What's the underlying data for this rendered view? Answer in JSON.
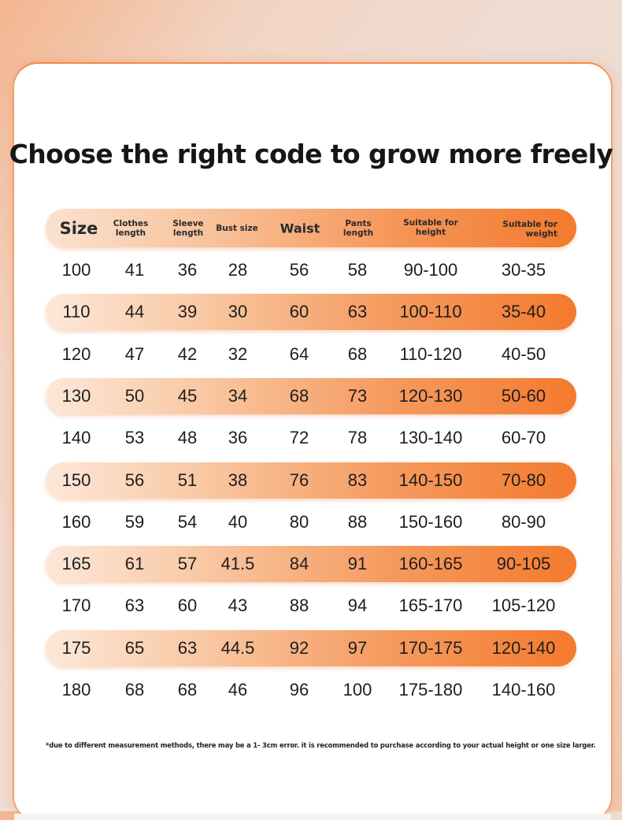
{
  "title": "Choose the right code to grow more freely",
  "headers": {
    "size": "Size",
    "clothes_length": "Clothes\nlength",
    "sleeve_length": "Sleeve\nlength",
    "bust_size": "Bust size",
    "waist": "Waist",
    "pants_length": "Pants\nlength",
    "suitable_height": "Suitable for\nheight",
    "suitable_weight": "Suitable for\nweight"
  },
  "rows": [
    [
      "100",
      "41",
      "36",
      "28",
      "56",
      "58",
      "90-100",
      "30-35"
    ],
    [
      "110",
      "44",
      "39",
      "30",
      "60",
      "63",
      "100-110",
      "35-40"
    ],
    [
      "120",
      "47",
      "42",
      "32",
      "64",
      "68",
      "110-120",
      "40-50"
    ],
    [
      "130",
      "50",
      "45",
      "34",
      "68",
      "73",
      "120-130",
      "50-60"
    ],
    [
      "140",
      "53",
      "48",
      "36",
      "72",
      "78",
      "130-140",
      "60-70"
    ],
    [
      "150",
      "56",
      "51",
      "38",
      "76",
      "83",
      "140-150",
      "70-80"
    ],
    [
      "160",
      "59",
      "54",
      "40",
      "80",
      "88",
      "150-160",
      "80-90"
    ],
    [
      "165",
      "61",
      "57",
      "41.5",
      "84",
      "91",
      "160-165",
      "90-105"
    ],
    [
      "170",
      "63",
      "60",
      "43",
      "88",
      "94",
      "165-170",
      "105-120"
    ],
    [
      "175",
      "65",
      "63",
      "44.5",
      "92",
      "97",
      "170-175",
      "120-140"
    ],
    [
      "180",
      "68",
      "68",
      "46",
      "96",
      "100",
      "175-180",
      "140-160"
    ]
  ],
  "footnote": "*due to different measurement methods, there may be a 1- 3cm error. it is recommended to purchase according to your actual height or one size larger.",
  "colors": {
    "accent": "#f47a2e",
    "stripe_light": "#fde8d9",
    "text": "#1e1e1e"
  }
}
